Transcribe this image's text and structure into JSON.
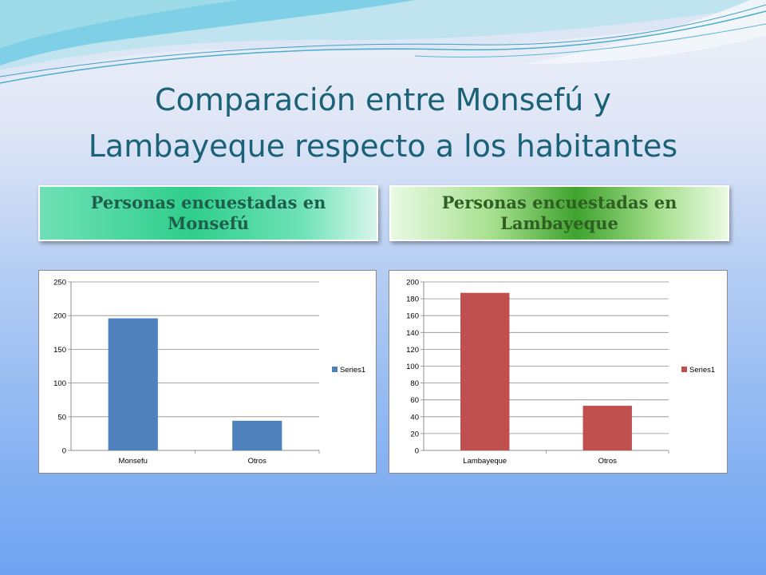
{
  "slide": {
    "title_line1": "Comparación entre Monsefú y",
    "title_line2": "Lambayeque respecto a los habitantes"
  },
  "labels": {
    "left": "Personas encuestadas en Monsefú",
    "right": "Personas encuestadas en Lambayeque"
  },
  "chart_data": [
    {
      "type": "bar",
      "categories": [
        "Monsefu",
        "Otros"
      ],
      "series": [
        {
          "name": "Series1",
          "values": [
            196,
            44
          ],
          "color": "#4f81bd"
        }
      ],
      "ylim": [
        0,
        250
      ],
      "yticks": [
        0,
        50,
        100,
        150,
        200,
        250
      ],
      "title": "",
      "xlabel": "",
      "ylabel": "",
      "grid": true,
      "legend": "right"
    },
    {
      "type": "bar",
      "categories": [
        "Lambayeque",
        "Otros"
      ],
      "series": [
        {
          "name": "Series1",
          "values": [
            187,
            53
          ],
          "color": "#c0504d"
        }
      ],
      "ylim": [
        0,
        200
      ],
      "yticks": [
        0,
        20,
        40,
        60,
        80,
        100,
        120,
        140,
        160,
        180,
        200
      ],
      "title": "",
      "xlabel": "",
      "ylabel": "",
      "grid": true,
      "legend": "right"
    }
  ]
}
